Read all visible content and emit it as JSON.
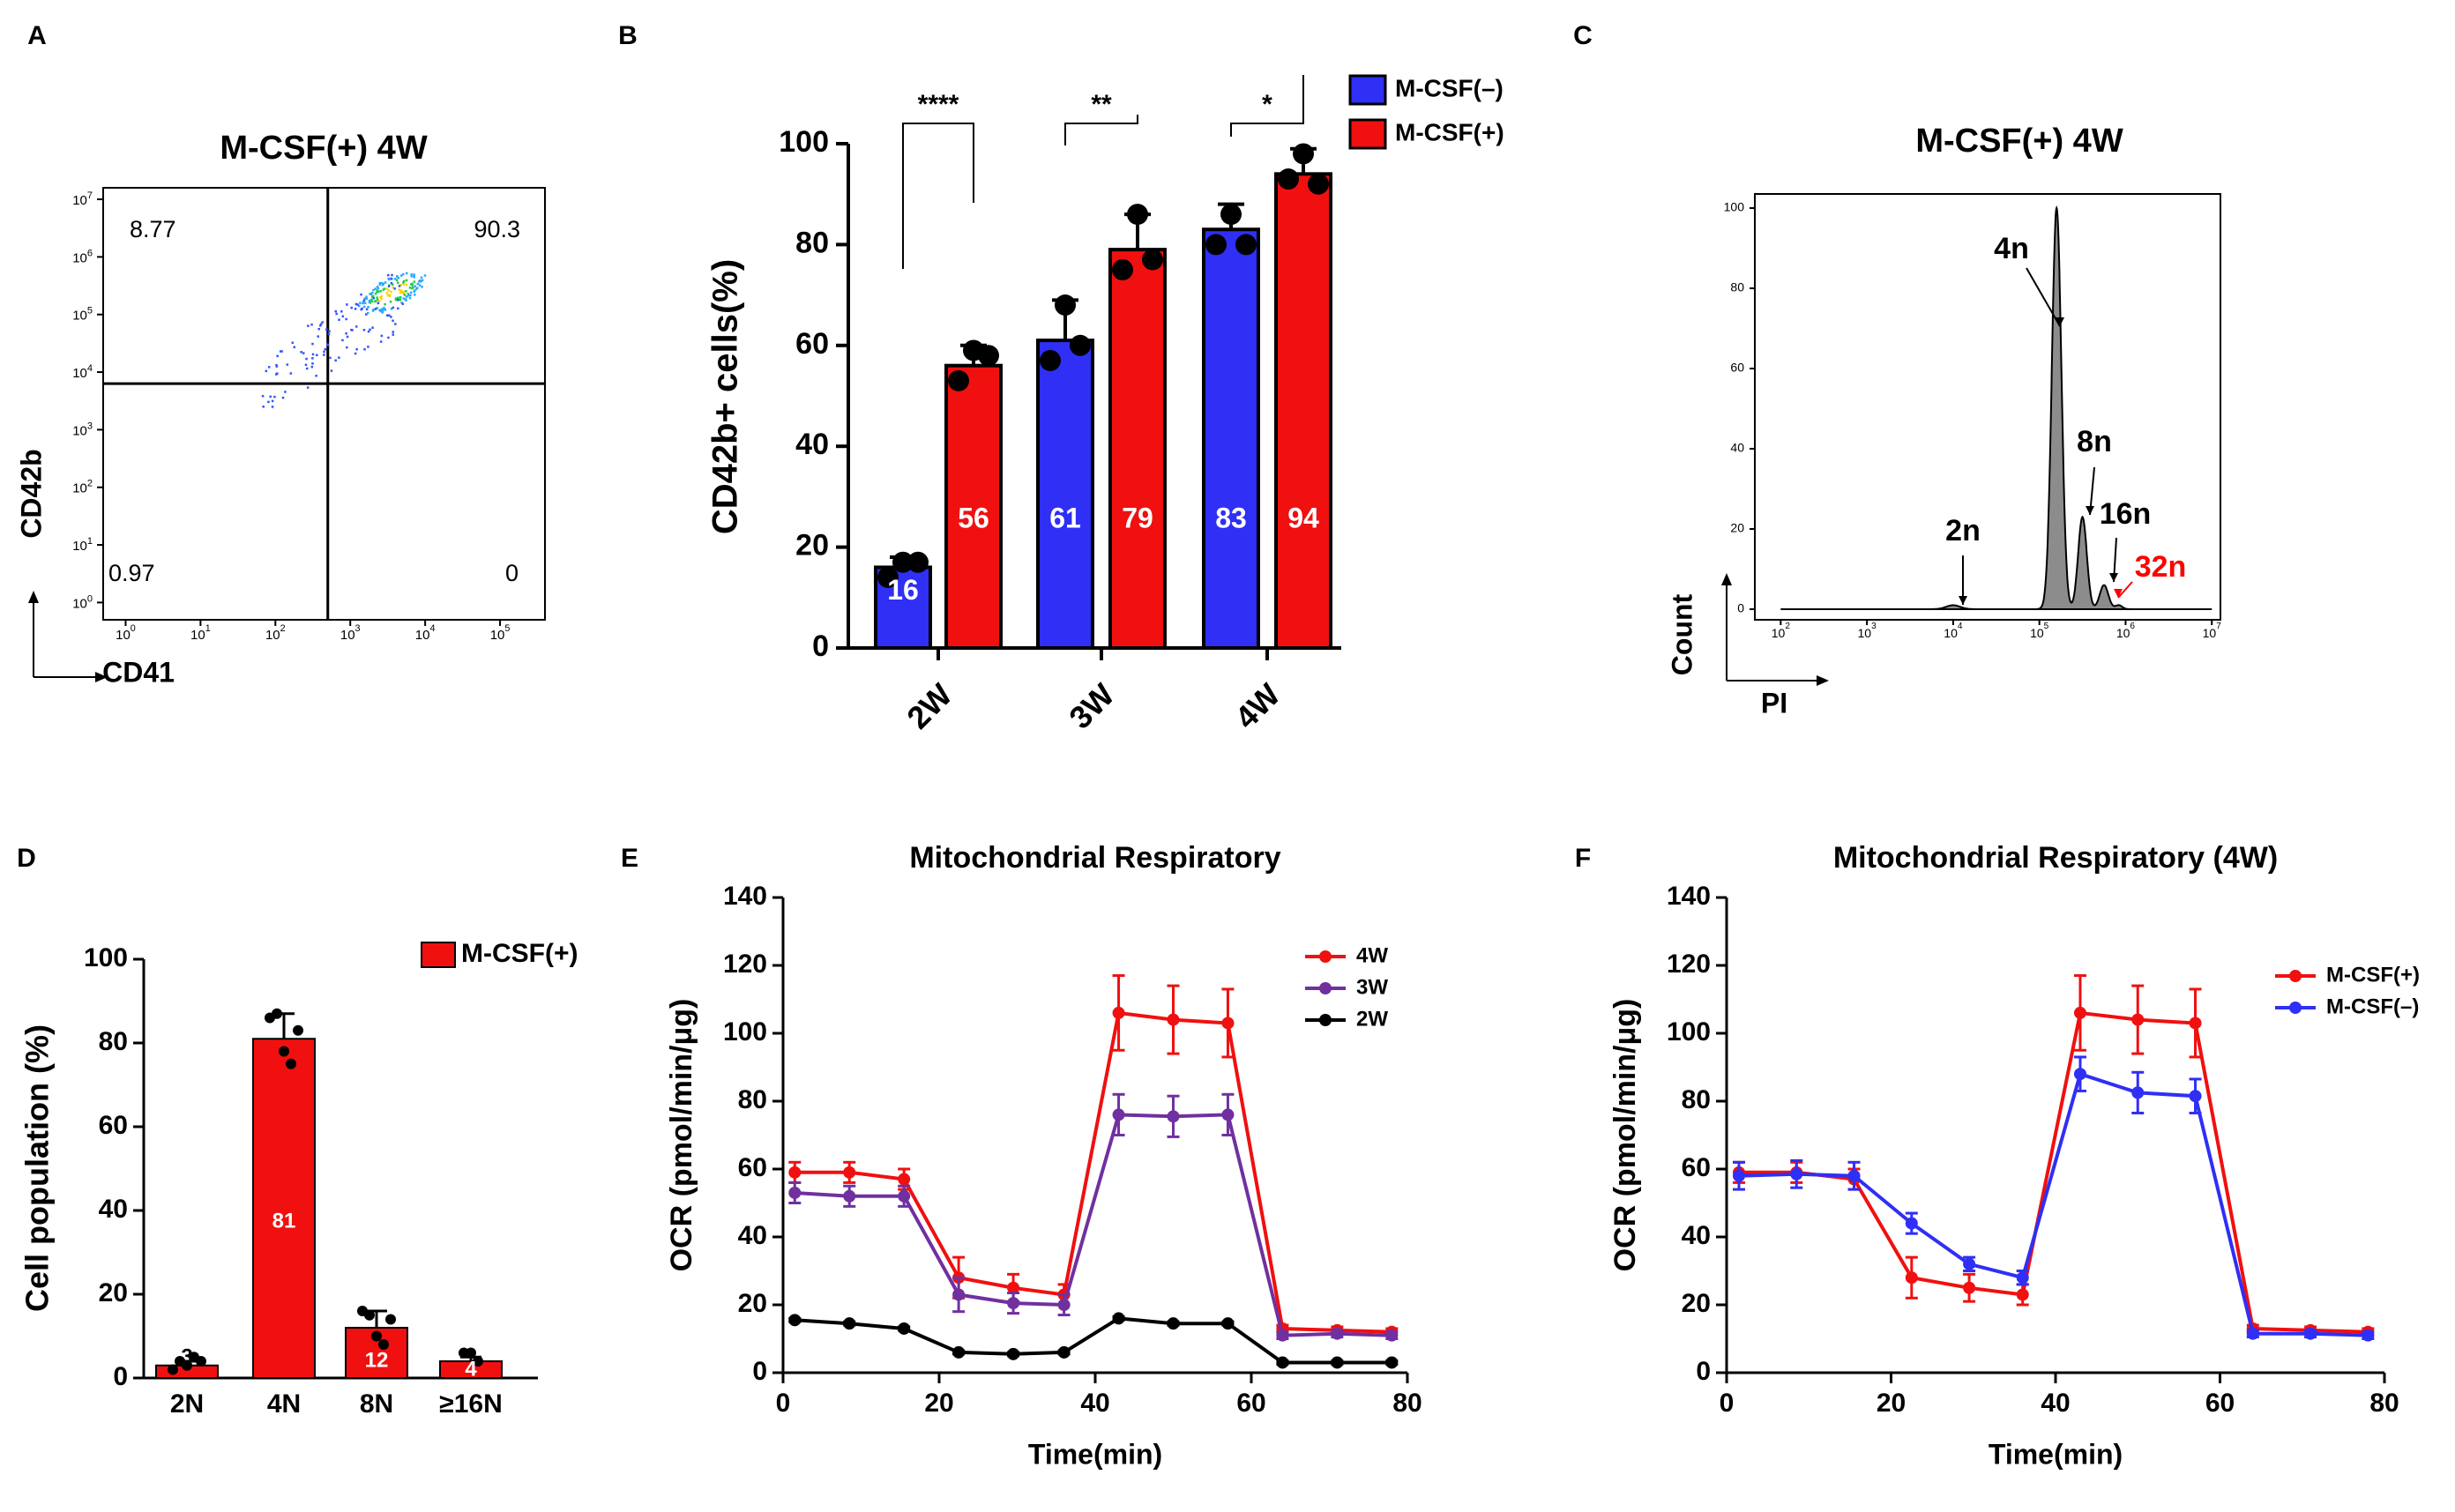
{
  "colors": {
    "blue": "#2f2ff5",
    "red": "#f01010",
    "purple": "#7030a0",
    "black": "#000000",
    "gray": "#888888",
    "peak_label_red": "#ff0000"
  },
  "chart_data": [
    {
      "panel": "A",
      "type": "scatter",
      "title": "M-CSF(+)  4W",
      "xlabel": "CD41",
      "ylabel": "CD42b",
      "x_tick_labels": [
        "10^0",
        "10^1",
        "10^2",
        "10^3",
        "10^4",
        "10^5"
      ],
      "y_tick_labels": [
        "10^0",
        "10^1",
        "10^2",
        "10^3",
        "10^4",
        "10^5",
        "10^6",
        "10^7"
      ],
      "xlim_log10": [
        -0.3,
        5.6
      ],
      "ylim_log10": [
        -0.3,
        7.2
      ],
      "gate_x_log10": 2.7,
      "gate_y_log10": 3.8,
      "quadrants": {
        "upper_left": "8.77",
        "upper_right": "90.3",
        "lower_left": "0.97",
        "lower_right": "0"
      }
    },
    {
      "panel": "B",
      "type": "bar",
      "ylabel": "CD42b+ cells(%)",
      "categories": [
        "2W",
        "3W",
        "4W"
      ],
      "ylim": [
        0,
        100
      ],
      "yticks": [
        0,
        20,
        40,
        60,
        80,
        100
      ],
      "series": [
        {
          "name": "M-CSF(–)",
          "values": [
            16,
            61,
            83
          ],
          "errors": [
            2,
            8,
            5
          ],
          "points": [
            [
              14,
              17,
              17
            ],
            [
              57,
              68,
              60
            ],
            [
              80,
              86,
              80
            ]
          ]
        },
        {
          "name": "M-CSF(+)",
          "values": [
            56,
            79,
            94
          ],
          "errors": [
            4,
            7,
            5
          ],
          "points": [
            [
              53,
              59,
              58
            ],
            [
              75,
              86,
              77
            ],
            [
              93,
              98,
              92
            ]
          ]
        }
      ],
      "bar_labels": [
        [
          "16",
          "61",
          "83"
        ],
        [
          "56",
          "79",
          "94"
        ]
      ],
      "significance": [
        "****",
        "**",
        "*"
      ]
    },
    {
      "panel": "C",
      "type": "area",
      "title": "M-CSF(+) 4W",
      "xlabel": "PI",
      "ylabel": "Count",
      "x_tick_labels": [
        "10^2",
        "10^3",
        "10^4",
        "10^5",
        "10^6",
        "10^7"
      ],
      "yticks": [
        0,
        20,
        40,
        60,
        80,
        100
      ],
      "xlim_log10": [
        1.7,
        7.1
      ],
      "ylim": [
        0,
        105
      ],
      "peaks": [
        {
          "label": "2n",
          "x_log10": 4.0,
          "height": 1
        },
        {
          "label": "4n",
          "x_log10": 5.2,
          "height": 100
        },
        {
          "label": "8n",
          "x_log10": 5.5,
          "height": 23
        },
        {
          "label": "16n",
          "x_log10": 5.75,
          "height": 6
        },
        {
          "label": "32n",
          "x_log10": 5.92,
          "height": 1
        }
      ]
    },
    {
      "panel": "D",
      "type": "bar",
      "ylabel": "Cell population (%)",
      "categories": [
        "2N",
        "4N",
        "8N",
        "≥16N"
      ],
      "values": [
        3,
        81,
        12,
        4
      ],
      "errors": [
        1,
        6,
        4,
        1
      ],
      "bar_labels": [
        "3",
        "81",
        "12",
        "4"
      ],
      "legend": "M-CSF(+)",
      "ylim": [
        0,
        100
      ],
      "yticks": [
        0,
        20,
        40,
        60,
        80,
        100
      ],
      "points": [
        [
          2,
          4,
          3,
          5,
          4
        ],
        [
          86,
          87,
          78,
          75,
          83
        ],
        [
          16,
          15,
          10,
          8,
          14
        ],
        [
          6,
          6,
          4
        ]
      ]
    },
    {
      "panel": "E",
      "type": "line",
      "title": "Mitochondrial Respiratory",
      "xlabel": "Time(min)",
      "ylabel": "OCR (pmol/min/μg)",
      "xlim": [
        0,
        80
      ],
      "ylim": [
        0,
        140
      ],
      "xticks": [
        0,
        20,
        40,
        60,
        80
      ],
      "yticks": [
        0,
        20,
        40,
        60,
        80,
        100,
        120,
        140
      ],
      "x": [
        1.5,
        8.5,
        15.5,
        22.5,
        29.5,
        36,
        43,
        50,
        57,
        64,
        71,
        78
      ],
      "series": [
        {
          "name": "4W",
          "values": [
            59,
            59,
            57,
            28,
            25,
            23,
            106,
            104,
            103,
            13,
            12.5,
            12
          ],
          "errors": [
            3,
            3,
            3,
            6,
            4,
            3,
            11,
            10,
            10,
            1,
            1,
            1
          ]
        },
        {
          "name": "3W",
          "values": [
            53,
            52,
            52,
            23,
            20.5,
            20,
            76,
            75.5,
            76,
            11,
            11.5,
            11
          ],
          "errors": [
            3,
            3,
            3,
            5,
            3,
            3,
            6,
            6,
            6,
            1,
            1,
            1
          ]
        },
        {
          "name": "2W",
          "values": [
            15.5,
            14.5,
            13,
            6,
            5.5,
            6,
            16,
            14.5,
            14.5,
            3,
            3,
            3
          ],
          "errors": [
            0.5,
            0.5,
            0.5,
            0.5,
            0.5,
            0.5,
            0.5,
            0.5,
            0.5,
            0.5,
            0.5,
            0.5
          ]
        }
      ]
    },
    {
      "panel": "F",
      "type": "line",
      "title": "Mitochondrial Respiratory (4W)",
      "xlabel": "Time(min)",
      "ylabel": "OCR (pmol/min/μg)",
      "xlim": [
        0,
        80
      ],
      "ylim": [
        0,
        140
      ],
      "xticks": [
        0,
        20,
        40,
        60,
        80
      ],
      "yticks": [
        0,
        20,
        40,
        60,
        80,
        100,
        120,
        140
      ],
      "x": [
        1.5,
        8.5,
        15.5,
        22.5,
        29.5,
        36,
        43,
        50,
        57,
        64,
        71,
        78
      ],
      "series": [
        {
          "name": "M-CSF(+)",
          "values": [
            59,
            59,
            57,
            28,
            25,
            23,
            106,
            104,
            103,
            13,
            12.5,
            12
          ],
          "errors": [
            3,
            3,
            3,
            6,
            4,
            3,
            11,
            10,
            10,
            1,
            1,
            1
          ]
        },
        {
          "name": "M-CSF(–)",
          "values": [
            58,
            58.5,
            58,
            44,
            32,
            28,
            88,
            82.5,
            81.5,
            11.5,
            11.5,
            11
          ],
          "errors": [
            4,
            4,
            4,
            3,
            2,
            2,
            5,
            6,
            5,
            1,
            1,
            1
          ]
        }
      ]
    }
  ],
  "panel_labels": [
    "A",
    "B",
    "C",
    "D",
    "E",
    "F"
  ]
}
